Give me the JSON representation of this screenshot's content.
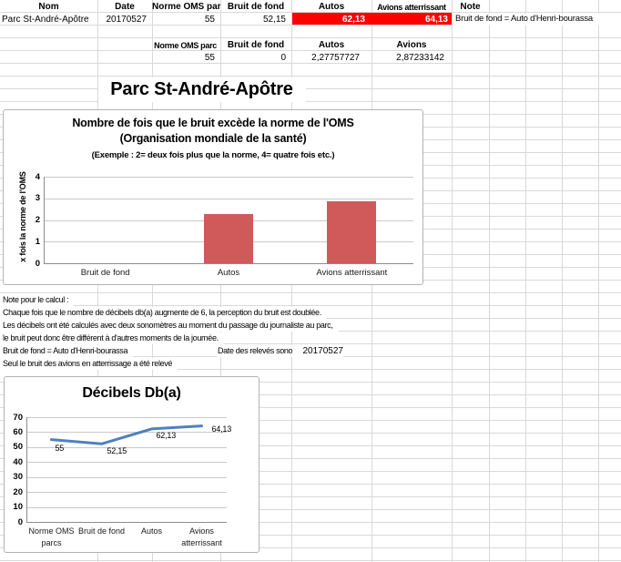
{
  "colors": {
    "highlight": "#fe0000",
    "bar": "#d05a5a",
    "line": "#4f81bd",
    "grid": "#d9d9d9"
  },
  "table1": {
    "headers": {
      "nom": "Nom",
      "date": "Date",
      "norme": "Norme OMS parc",
      "bruit": "Bruit de fond",
      "autos": "Autos",
      "avions": "Avions atterrissant",
      "note": "Note"
    },
    "row": {
      "nom": "Parc St-André-Apôtre",
      "date": "20170527",
      "norme": "55",
      "bruit": "52,15",
      "autos": "62,13",
      "avions": "64,13",
      "note": "Bruit de fond = Auto d'Henri-bourassa"
    }
  },
  "table2": {
    "headers": {
      "norme": "Norme OMS parc",
      "bruit": "Bruit de fond",
      "autos": "Autos",
      "avions": "Avions"
    },
    "values": {
      "norme": "55",
      "bruit": "0",
      "autos": "2,27757727",
      "avions": "2,87233142"
    }
  },
  "page_title": "Parc St-André-Apôtre",
  "notes": {
    "title": "Note pour le calcul :",
    "line1": "Chaque fois que le nombre de décibels db(a) augmente de 6, la perception du bruit est doublée.",
    "line2": "Les décibels ont été calculés avec deux sonomètres au moment du passage du journaliste au parc,",
    "line3": "le bruit peut donc être différent à d'autres moments de la journée.",
    "line4": "Bruit de fond = Auto d'Henri-bourassa",
    "date_label": "Date des relevés sonores :",
    "date_value": "20170527",
    "line5": "Seul le bruit des avions en atterrissage a été relevé"
  },
  "chart_data": [
    {
      "type": "bar",
      "title": "Nombre de fois que le bruit excède la norme de l'OMS",
      "subtitle": "(Organisation mondiale de la santé)",
      "note": "(Exemple : 2= deux fois plus que la norme, 4= quatre fois etc.)",
      "ylabel": "x fois la norme de l'OMS",
      "xlabel": "",
      "categories": [
        "Bruit de fond",
        "Autos",
        "Avions atterrissant"
      ],
      "values": [
        0,
        2.27757727,
        2.87233142
      ],
      "ylim": [
        0,
        4
      ],
      "yticks": [
        0,
        1,
        2,
        3,
        4
      ],
      "grid": true,
      "legend": false,
      "bar_color": "#d05a5a"
    },
    {
      "type": "line",
      "title": "Décibels Db(a)",
      "xlabel": "",
      "ylabel": "",
      "categories": [
        "Norme OMS\nparcs",
        "Bruit de fond",
        "Autos",
        "Avions\natterrissant"
      ],
      "values": [
        55,
        52.15,
        62.13,
        64.13
      ],
      "point_labels": [
        "55",
        "52,15",
        "62,13",
        "64,13"
      ],
      "ylim": [
        0,
        70
      ],
      "yticks": [
        0,
        10,
        20,
        30,
        40,
        50,
        60,
        70
      ],
      "grid": true,
      "legend": false,
      "line_color": "#4f81bd"
    }
  ]
}
